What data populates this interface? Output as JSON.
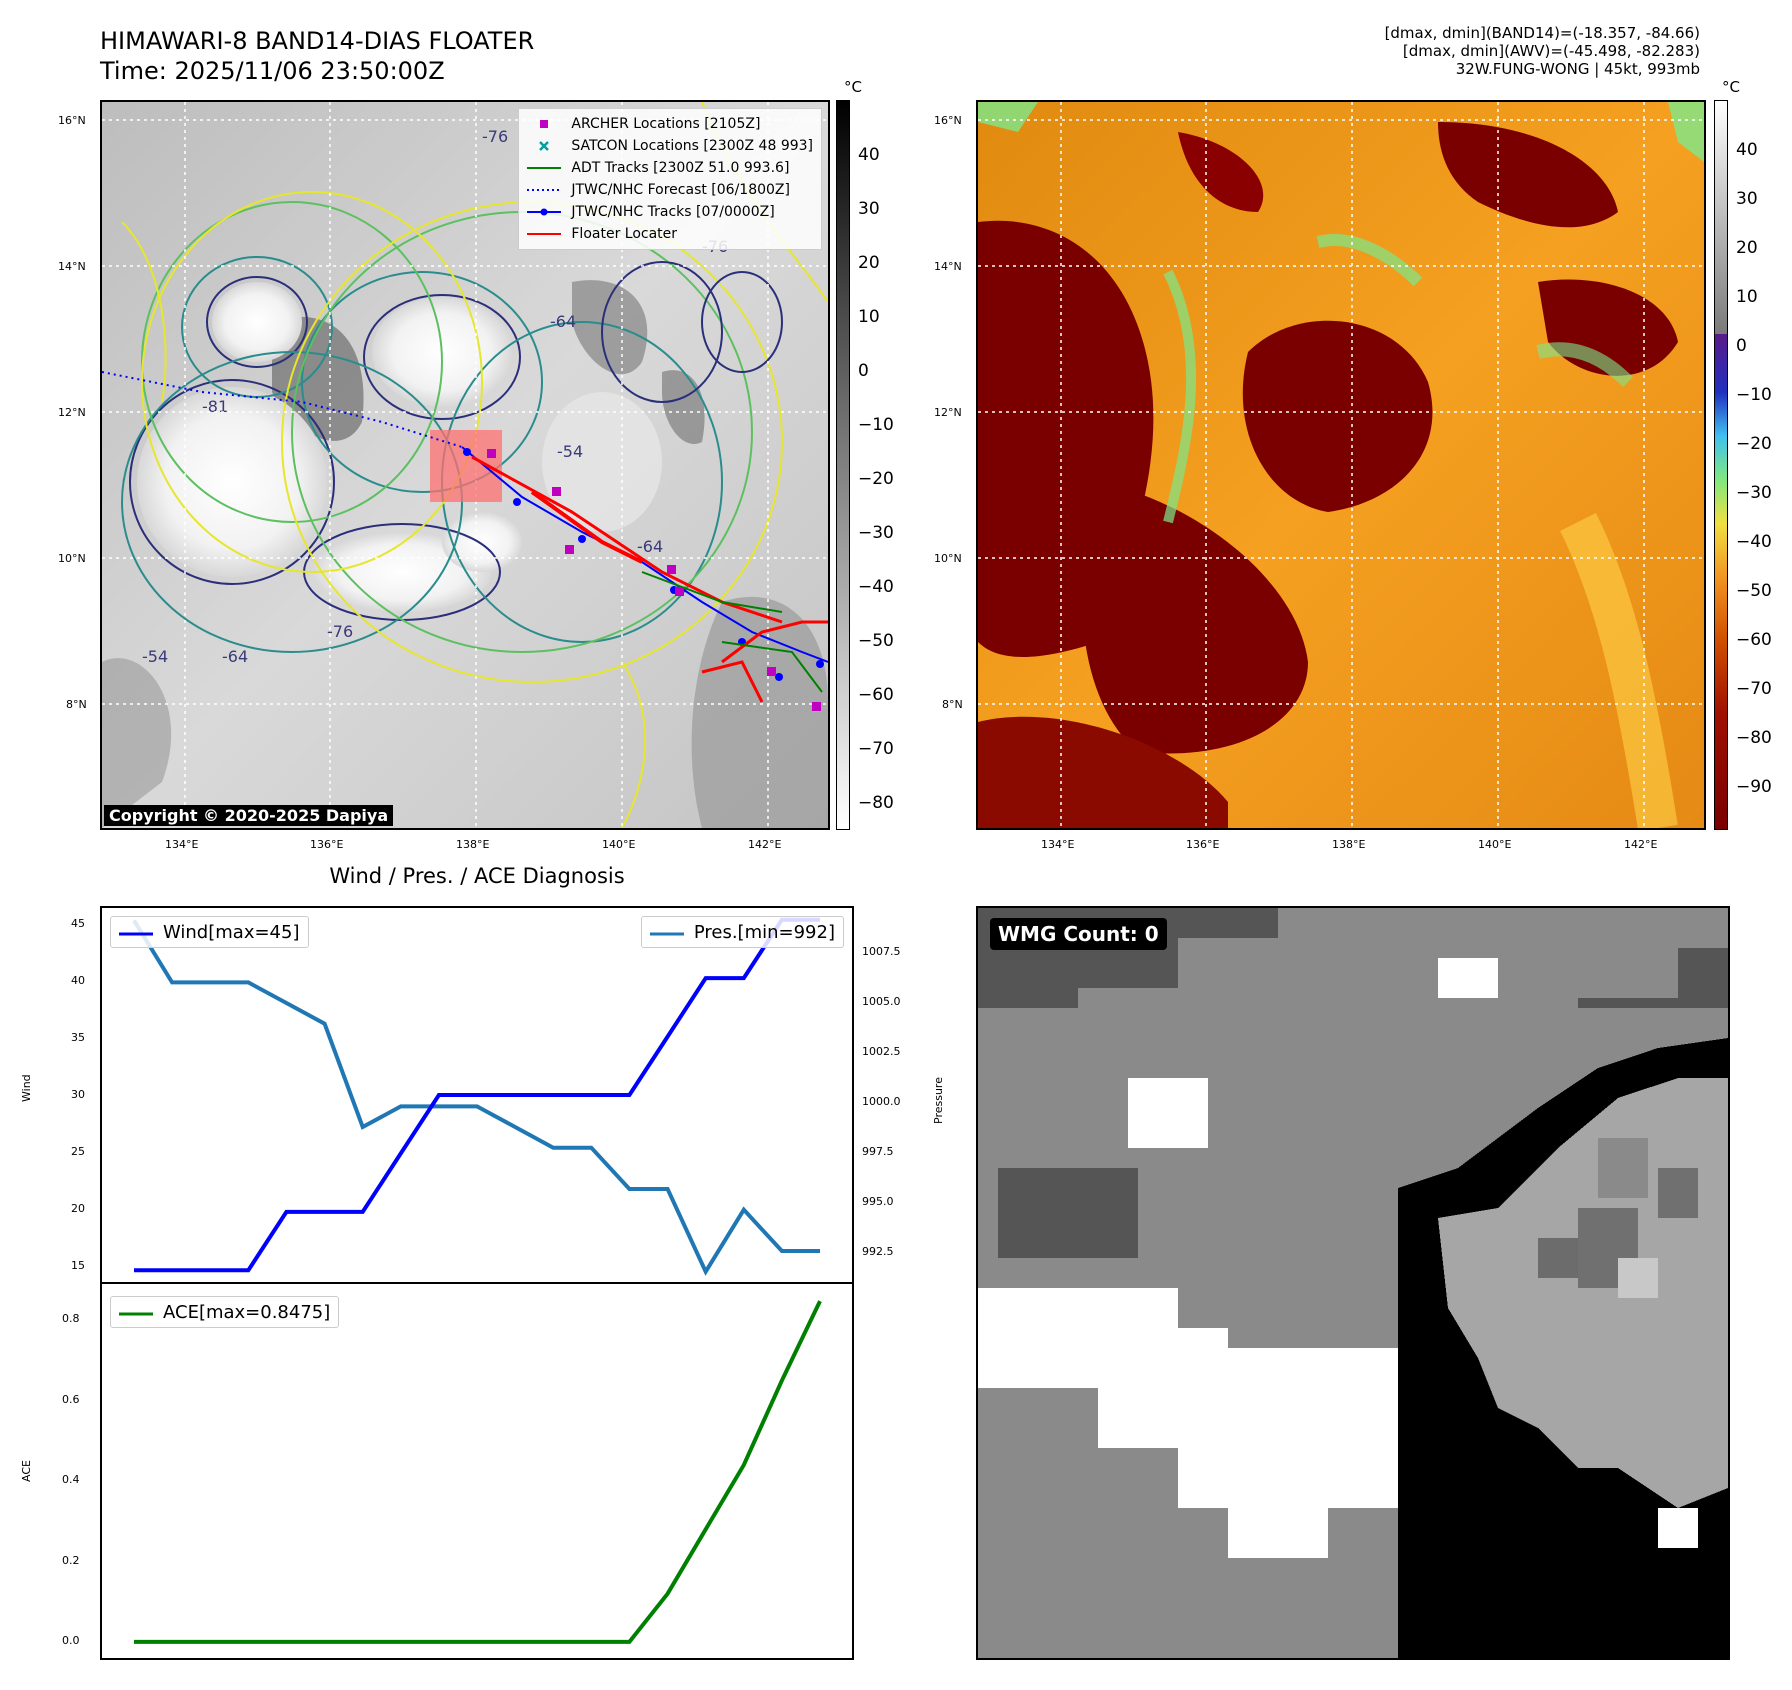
{
  "header": {
    "title_line1": "HIMAWARI-8 BAND14-DIAS FLOATER",
    "title_line2": "Time: 2025/11/06 23:50:00Z",
    "info_line1": "[dmax, dmin](BAND14)=(-18.357, -84.66)",
    "info_line2": "[dmax, dmin](AWV)=(-45.498, -82.283)",
    "info_line3": "32W.FUNG-WONG | 45kt, 993mb"
  },
  "map_axes": {
    "lat_ticks": [
      "16°N",
      "14°N",
      "12°N",
      "10°N",
      "8°N"
    ],
    "lon_ticks": [
      "134°E",
      "136°E",
      "138°E",
      "140°E",
      "142°E"
    ]
  },
  "ir_panel": {
    "colorbar_unit": "°C",
    "colorbar_ticks": [
      "40",
      "30",
      "20",
      "10",
      "0",
      "−10",
      "−20",
      "−30",
      "−40",
      "−50",
      "−60",
      "−70",
      "−80"
    ],
    "contour_labels": [
      "-76",
      "-64",
      "-54",
      "-81",
      "-76",
      "-64",
      "-54",
      "-64",
      "-76"
    ],
    "legend": [
      {
        "label": "ARCHER Locations [2105Z]",
        "color": "#c000c0",
        "marker": "square"
      },
      {
        "label": "SATCON Locations [2300Z 48 993]",
        "color": "#00a0a0",
        "marker": "x"
      },
      {
        "label": "ADT Tracks [2300Z 51.0 993.6]",
        "color": "#008000",
        "marker": "line"
      },
      {
        "label": "JTWC/NHC Forecast [06/1800Z]",
        "color": "#0000ff",
        "marker": "dotted"
      },
      {
        "label": "JTWC/NHC Tracks [07/0000Z]",
        "color": "#0000ff",
        "marker": "line-dot"
      },
      {
        "label": "Floater Locater",
        "color": "#ff0000",
        "marker": "line"
      }
    ],
    "copyright": "Copyright © 2020-2025 Dapiya"
  },
  "wv_panel": {
    "colorbar_unit": "°C",
    "colorbar_ticks": [
      "40",
      "30",
      "20",
      "10",
      "0",
      "−10",
      "−20",
      "−30",
      "−40",
      "−50",
      "−60",
      "−70",
      "−80",
      "−90"
    ]
  },
  "diag_panel": {
    "title": "Wind / Pres. / ACE Diagnosis",
    "wind_ylabel": "Wind",
    "pres_ylabel": "Pressure",
    "ace_ylabel": "ACE",
    "wind_legend": "Wind[max=45]",
    "pres_legend": "Pres.[min=992]",
    "ace_legend": "ACE[max=0.8475]",
    "wind_ticks": [
      "45",
      "40",
      "35",
      "30",
      "25",
      "20",
      "15"
    ],
    "pres_ticks": [
      "1007.5",
      "1005.0",
      "1002.5",
      "1000.0",
      "997.5",
      "995.0",
      "992.5"
    ],
    "ace_ticks": [
      "0.8",
      "0.6",
      "0.4",
      "0.2",
      "0.0"
    ]
  },
  "wmg_panel": {
    "label": "WMG Count: 0"
  },
  "chart_data": [
    {
      "type": "line",
      "title": "Wind / Pres. / ACE Diagnosis",
      "ylabel": "Wind",
      "ylim": [
        14.0,
        46.0
      ],
      "series": [
        {
          "name": "Wind[max=45]",
          "color": "#0000ff",
          "values": [
            15,
            15,
            15,
            15,
            20,
            20,
            20,
            25,
            30,
            30,
            30,
            30,
            30,
            30,
            35,
            40,
            40,
            45,
            45
          ]
        }
      ]
    },
    {
      "type": "line",
      "ylabel": "Pressure",
      "ylim": [
        991.5,
        1009.6
      ],
      "series": [
        {
          "name": "Pres.[min=992]",
          "color": "#1f77b4",
          "values": [
            1009,
            1006,
            1006,
            1006,
            1005,
            1004,
            999,
            1000,
            1000,
            1000,
            999,
            998,
            998,
            996,
            996,
            992,
            995,
            993,
            993
          ]
        }
      ]
    },
    {
      "type": "line",
      "ylabel": "ACE",
      "ylim": [
        -0.04,
        0.89
      ],
      "series": [
        {
          "name": "ACE[max=0.8475]",
          "color": "#008000",
          "values": [
            0,
            0,
            0,
            0,
            0,
            0,
            0,
            0,
            0,
            0,
            0,
            0,
            0,
            0,
            0.12,
            0.28,
            0.44,
            0.65,
            0.8475
          ]
        }
      ]
    }
  ]
}
